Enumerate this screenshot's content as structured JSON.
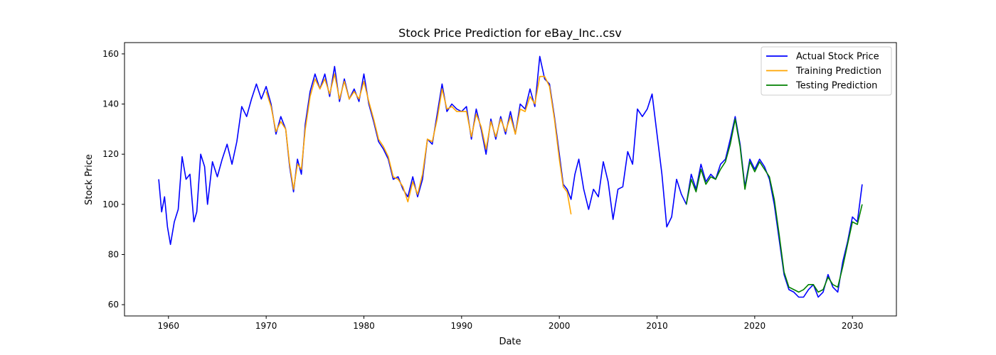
{
  "chart_data": {
    "type": "line",
    "title": "Stock Price Prediction for eBay_Inc..csv",
    "xlabel": "Date",
    "ylabel": "Stock Price",
    "xlim": [
      1955.5,
      2034.5
    ],
    "ylim": [
      55.5,
      164.5
    ],
    "xticks": [
      1960,
      1970,
      1980,
      1990,
      2000,
      2010,
      2020,
      2030
    ],
    "yticks": [
      60,
      80,
      100,
      120,
      140,
      160
    ],
    "grid": false,
    "legend_position": "top-right",
    "series": [
      {
        "name": "Actual Stock Price",
        "color": "#0000ff",
        "points": [
          [
            1959.0,
            110
          ],
          [
            1959.3,
            97
          ],
          [
            1959.6,
            103
          ],
          [
            1959.9,
            91
          ],
          [
            1960.2,
            84
          ],
          [
            1960.6,
            93
          ],
          [
            1961.0,
            98
          ],
          [
            1961.4,
            119
          ],
          [
            1961.8,
            110
          ],
          [
            1962.2,
            112
          ],
          [
            1962.6,
            93
          ],
          [
            1962.9,
            97
          ],
          [
            1963.3,
            120
          ],
          [
            1963.7,
            115
          ],
          [
            1964.0,
            100
          ],
          [
            1964.5,
            117
          ],
          [
            1965.0,
            111
          ],
          [
            1965.5,
            118
          ],
          [
            1966.0,
            124
          ],
          [
            1966.5,
            116
          ],
          [
            1967.0,
            125
          ],
          [
            1967.5,
            139
          ],
          [
            1968.0,
            135
          ],
          [
            1968.5,
            142
          ],
          [
            1969.0,
            148
          ],
          [
            1969.5,
            142
          ],
          [
            1970.0,
            147
          ],
          [
            1970.5,
            140
          ],
          [
            1971.0,
            128
          ],
          [
            1971.5,
            135
          ],
          [
            1972.0,
            130
          ],
          [
            1972.4,
            115
          ],
          [
            1972.8,
            105
          ],
          [
            1973.2,
            118
          ],
          [
            1973.6,
            112
          ],
          [
            1974.0,
            132
          ],
          [
            1974.5,
            145
          ],
          [
            1975.0,
            152
          ],
          [
            1975.5,
            146
          ],
          [
            1976.0,
            152
          ],
          [
            1976.5,
            143
          ],
          [
            1977.0,
            155
          ],
          [
            1977.5,
            141
          ],
          [
            1978.0,
            150
          ],
          [
            1978.5,
            142
          ],
          [
            1979.0,
            146
          ],
          [
            1979.5,
            141
          ],
          [
            1980.0,
            152
          ],
          [
            1980.5,
            140
          ],
          [
            1981.0,
            133
          ],
          [
            1981.5,
            125
          ],
          [
            1982.0,
            122
          ],
          [
            1982.5,
            118
          ],
          [
            1983.0,
            110
          ],
          [
            1983.5,
            111
          ],
          [
            1984.0,
            106
          ],
          [
            1984.5,
            103
          ],
          [
            1985.0,
            111
          ],
          [
            1985.5,
            103
          ],
          [
            1986.0,
            110
          ],
          [
            1986.5,
            126
          ],
          [
            1987.0,
            124
          ],
          [
            1987.5,
            136
          ],
          [
            1988.0,
            148
          ],
          [
            1988.5,
            137
          ],
          [
            1989.0,
            140
          ],
          [
            1989.5,
            138
          ],
          [
            1990.0,
            137
          ],
          [
            1990.5,
            139
          ],
          [
            1991.0,
            126
          ],
          [
            1991.5,
            138
          ],
          [
            1992.0,
            130
          ],
          [
            1992.5,
            120
          ],
          [
            1993.0,
            134
          ],
          [
            1993.5,
            126
          ],
          [
            1994.0,
            135
          ],
          [
            1994.5,
            128
          ],
          [
            1995.0,
            137
          ],
          [
            1995.5,
            128
          ],
          [
            1996.0,
            140
          ],
          [
            1996.5,
            138
          ],
          [
            1997.0,
            146
          ],
          [
            1997.5,
            139
          ],
          [
            1998.0,
            159
          ],
          [
            1998.5,
            150
          ],
          [
            1999.0,
            148
          ],
          [
            1999.5,
            135
          ],
          [
            2000.0,
            120
          ],
          [
            2000.4,
            108
          ],
          [
            2000.8,
            106
          ],
          [
            2001.2,
            102
          ],
          [
            2001.6,
            112
          ],
          [
            2002.0,
            118
          ],
          [
            2002.5,
            106
          ],
          [
            2003.0,
            98
          ],
          [
            2003.5,
            106
          ],
          [
            2004.0,
            103
          ],
          [
            2004.5,
            117
          ],
          [
            2005.0,
            109
          ],
          [
            2005.5,
            94
          ],
          [
            2006.0,
            106
          ],
          [
            2006.5,
            107
          ],
          [
            2007.0,
            121
          ],
          [
            2007.5,
            116
          ],
          [
            2008.0,
            138
          ],
          [
            2008.5,
            135
          ],
          [
            2009.0,
            138
          ],
          [
            2009.5,
            144
          ],
          [
            2010.0,
            128
          ],
          [
            2010.5,
            112
          ],
          [
            2011.0,
            91
          ],
          [
            2011.5,
            95
          ],
          [
            2012.0,
            110
          ],
          [
            2012.5,
            104
          ],
          [
            2013.0,
            100
          ],
          [
            2013.5,
            112
          ],
          [
            2014.0,
            106
          ],
          [
            2014.5,
            116
          ],
          [
            2015.0,
            109
          ],
          [
            2015.5,
            112
          ],
          [
            2016.0,
            110
          ],
          [
            2016.5,
            116
          ],
          [
            2017.0,
            118
          ],
          [
            2017.5,
            126
          ],
          [
            2018.0,
            135
          ],
          [
            2018.5,
            124
          ],
          [
            2019.0,
            107
          ],
          [
            2019.5,
            118
          ],
          [
            2020.0,
            114
          ],
          [
            2020.5,
            118
          ],
          [
            2021.0,
            115
          ],
          [
            2021.5,
            110
          ],
          [
            2022.0,
            100
          ],
          [
            2022.5,
            86
          ],
          [
            2023.0,
            72
          ],
          [
            2023.5,
            66
          ],
          [
            2024.0,
            65
          ],
          [
            2024.5,
            63
          ],
          [
            2025.0,
            63
          ],
          [
            2025.5,
            66
          ],
          [
            2026.0,
            68
          ],
          [
            2026.5,
            63
          ],
          [
            2027.0,
            65
          ],
          [
            2027.5,
            72
          ],
          [
            2028.0,
            67
          ],
          [
            2028.5,
            65
          ],
          [
            2029.0,
            77
          ],
          [
            2029.5,
            85
          ],
          [
            2030.0,
            95
          ],
          [
            2030.5,
            93
          ],
          [
            2031.0,
            108
          ]
        ]
      },
      {
        "name": "Training Prediction",
        "color": "#ffa500",
        "points": [
          [
            1970.0,
            145
          ],
          [
            1970.5,
            139
          ],
          [
            1971.0,
            129
          ],
          [
            1971.5,
            133
          ],
          [
            1972.0,
            130
          ],
          [
            1972.4,
            116
          ],
          [
            1972.8,
            106
          ],
          [
            1973.2,
            116
          ],
          [
            1973.6,
            114
          ],
          [
            1974.0,
            130
          ],
          [
            1974.5,
            143
          ],
          [
            1975.0,
            150
          ],
          [
            1975.5,
            146
          ],
          [
            1976.0,
            150
          ],
          [
            1976.5,
            144
          ],
          [
            1977.0,
            152
          ],
          [
            1977.5,
            142
          ],
          [
            1978.0,
            149
          ],
          [
            1978.5,
            142
          ],
          [
            1979.0,
            145
          ],
          [
            1979.5,
            142
          ],
          [
            1980.0,
            149
          ],
          [
            1980.5,
            141
          ],
          [
            1981.0,
            134
          ],
          [
            1981.5,
            126
          ],
          [
            1982.0,
            123
          ],
          [
            1982.5,
            119
          ],
          [
            1983.0,
            111
          ],
          [
            1983.5,
            110
          ],
          [
            1984.0,
            107
          ],
          [
            1984.5,
            101
          ],
          [
            1985.0,
            109
          ],
          [
            1985.5,
            104
          ],
          [
            1986.0,
            112
          ],
          [
            1986.5,
            126
          ],
          [
            1987.0,
            125
          ],
          [
            1987.5,
            134
          ],
          [
            1988.0,
            146
          ],
          [
            1988.5,
            138
          ],
          [
            1989.0,
            139
          ],
          [
            1989.5,
            137
          ],
          [
            1990.0,
            137
          ],
          [
            1990.5,
            137
          ],
          [
            1991.0,
            127
          ],
          [
            1991.5,
            136
          ],
          [
            1992.0,
            131
          ],
          [
            1992.5,
            122
          ],
          [
            1993.0,
            133
          ],
          [
            1993.5,
            127
          ],
          [
            1994.0,
            134
          ],
          [
            1994.5,
            129
          ],
          [
            1995.0,
            135
          ],
          [
            1995.5,
            128
          ],
          [
            1996.0,
            138
          ],
          [
            1996.5,
            137
          ],
          [
            1997.0,
            143
          ],
          [
            1997.5,
            140
          ],
          [
            1998.0,
            151
          ],
          [
            1998.5,
            151
          ],
          [
            1999.0,
            147
          ],
          [
            1999.5,
            134
          ],
          [
            2000.0,
            118
          ],
          [
            2000.4,
            107
          ],
          [
            2000.8,
            105
          ],
          [
            2001.2,
            96
          ]
        ]
      },
      {
        "name": "Testing Prediction",
        "color": "#008000",
        "points": [
          [
            2013.0,
            100
          ],
          [
            2013.5,
            110
          ],
          [
            2014.0,
            105
          ],
          [
            2014.5,
            114
          ],
          [
            2015.0,
            108
          ],
          [
            2015.5,
            111
          ],
          [
            2016.0,
            110
          ],
          [
            2016.5,
            114
          ],
          [
            2017.0,
            117
          ],
          [
            2017.5,
            124
          ],
          [
            2018.0,
            134
          ],
          [
            2018.5,
            123
          ],
          [
            2019.0,
            106
          ],
          [
            2019.5,
            117
          ],
          [
            2020.0,
            113
          ],
          [
            2020.5,
            117
          ],
          [
            2021.0,
            114
          ],
          [
            2021.5,
            111
          ],
          [
            2022.0,
            102
          ],
          [
            2022.5,
            88
          ],
          [
            2023.0,
            73
          ],
          [
            2023.5,
            67
          ],
          [
            2024.0,
            66
          ],
          [
            2024.5,
            65
          ],
          [
            2025.0,
            66
          ],
          [
            2025.5,
            68
          ],
          [
            2026.0,
            68
          ],
          [
            2026.5,
            65
          ],
          [
            2027.0,
            66
          ],
          [
            2027.5,
            71
          ],
          [
            2028.0,
            68
          ],
          [
            2028.5,
            67
          ],
          [
            2029.0,
            75
          ],
          [
            2029.5,
            84
          ],
          [
            2030.0,
            93
          ],
          [
            2030.5,
            92
          ],
          [
            2031.0,
            100
          ]
        ]
      }
    ]
  }
}
